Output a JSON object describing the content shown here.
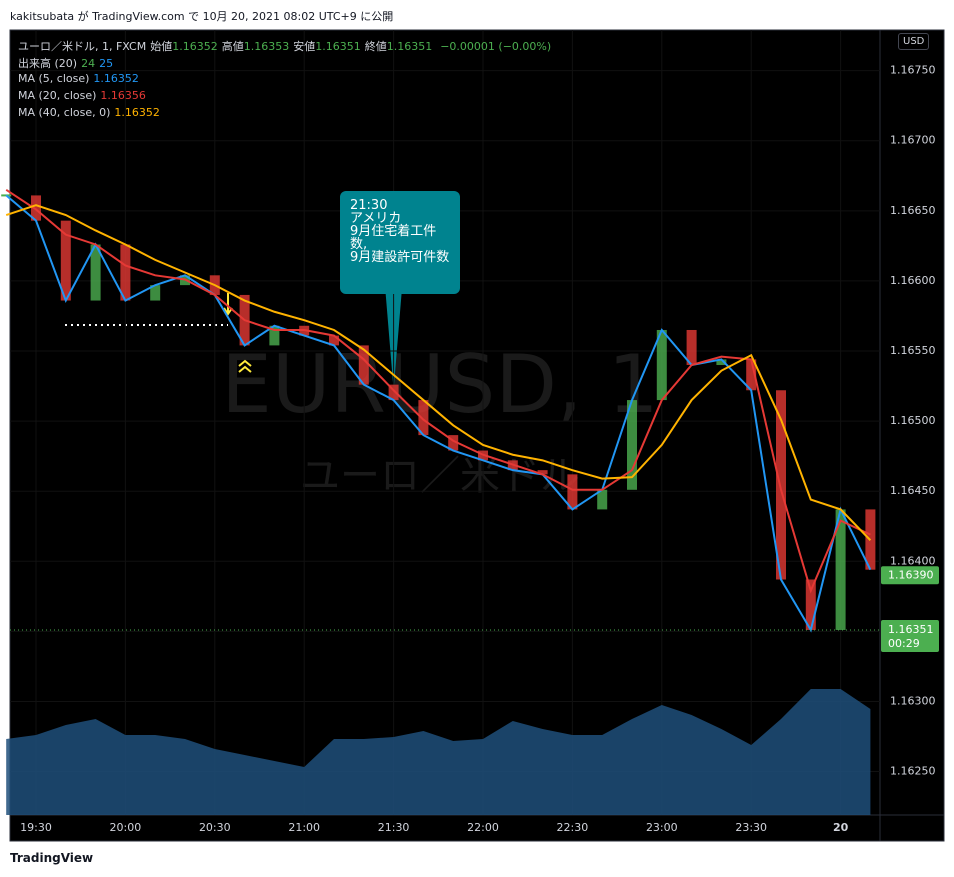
{
  "header": "kakitsubata が TradingView.com で 10月 20, 2021 08:02 UTC+9 に公開",
  "footer": "TradingView",
  "currency_button": "USD",
  "chart_data": {
    "type": "candlestick",
    "symbol": "ユーロ／米ドル, 1, FXCM",
    "watermark": "EURUSD, 1",
    "watermark_sub": "ユーロ／米ドル",
    "ohlc": [
      {
        "label": "始値",
        "value": "1.16352"
      },
      {
        "label": "高値",
        "value": "1.16353"
      },
      {
        "label": "安値",
        "value": "1.16351"
      },
      {
        "label": "終値",
        "value": "1.16351"
      }
    ],
    "change": "−0.00001 (−0.00%)",
    "volume_legend": {
      "name": "出来高 (20)",
      "values": [
        "24",
        "25"
      ]
    },
    "x": [
      "19:20",
      "19:30",
      "19:40",
      "19:50",
      "20:00",
      "20:10",
      "20:20",
      "20:30",
      "20:40",
      "20:50",
      "21:00",
      "21:10",
      "21:20",
      "21:30",
      "21:40",
      "21:50",
      "22:00",
      "22:10",
      "22:20",
      "22:30",
      "22:40",
      "22:50",
      "23:00",
      "23:10",
      "23:20",
      "23:30",
      "23:40",
      "23:50",
      "00:00",
      "00:10"
    ],
    "values": [
      1.16661,
      1.16643,
      1.16586,
      1.16626,
      1.16586,
      1.16597,
      1.16604,
      1.1659,
      1.16554,
      1.16568,
      1.16561,
      1.16554,
      1.16526,
      1.16515,
      1.1649,
      1.16479,
      1.16472,
      1.16465,
      1.16462,
      1.16437,
      1.16451,
      1.16515,
      1.16565,
      1.1654,
      1.16544,
      1.16522,
      1.16387,
      1.16351,
      1.16437,
      1.16394
    ],
    "up_color": "#4caf50",
    "down_color": "#e53935",
    "series": [
      {
        "name": "MA (5, close)",
        "last": "1.16352",
        "color": "#2196f3",
        "values": [
          1.16661,
          1.16643,
          1.16586,
          1.16626,
          1.16586,
          1.16597,
          1.16604,
          1.1659,
          1.16554,
          1.16568,
          1.16561,
          1.16554,
          1.16526,
          1.16515,
          1.1649,
          1.16479,
          1.16472,
          1.16465,
          1.16462,
          1.16437,
          1.16451,
          1.16515,
          1.16565,
          1.1654,
          1.16544,
          1.16522,
          1.16387,
          1.16351,
          1.16437,
          1.16394
        ]
      },
      {
        "name": "MA (20, close)",
        "last": "1.16356",
        "color": "#e53935",
        "values": [
          1.16665,
          1.16651,
          1.16633,
          1.16626,
          1.16611,
          1.16604,
          1.16601,
          1.1659,
          1.16572,
          1.16565,
          1.16565,
          1.16561,
          1.16544,
          1.16522,
          1.16501,
          1.16486,
          1.16476,
          1.16469,
          1.16462,
          1.16451,
          1.16451,
          1.16465,
          1.16515,
          1.1654,
          1.16546,
          1.16544,
          1.16451,
          1.16379,
          1.16429,
          1.16419
        ]
      },
      {
        "name": "MA (40, close, 0)",
        "last": "1.16352",
        "color": "#ffb300",
        "values": [
          1.16647,
          1.16654,
          1.16647,
          1.16636,
          1.16626,
          1.16615,
          1.16606,
          1.16597,
          1.16586,
          1.16578,
          1.16572,
          1.16565,
          1.16551,
          1.16533,
          1.16515,
          1.16497,
          1.16483,
          1.16476,
          1.16472,
          1.16465,
          1.16459,
          1.1646,
          1.16483,
          1.16515,
          1.16536,
          1.16547,
          1.16501,
          1.16444,
          1.16437,
          1.16415
        ]
      }
    ],
    "volume": {
      "color": "#1e4f7a",
      "ylim": [
        0,
        100
      ],
      "values": [
        38,
        40,
        45,
        48,
        40,
        40,
        38,
        33,
        30,
        27,
        24,
        38,
        38,
        39,
        42,
        37,
        38,
        47,
        43,
        40,
        40,
        48,
        55,
        50,
        43,
        35,
        48,
        63,
        63,
        53
      ]
    },
    "ylim": [
      1.16219,
      1.16779
    ],
    "yticks": [
      {
        "value": 1.1675,
        "label": "1.16750"
      },
      {
        "value": 1.167,
        "label": "1.16700"
      },
      {
        "value": 1.1665,
        "label": "1.16650"
      },
      {
        "value": 1.166,
        "label": "1.16600"
      },
      {
        "value": 1.1655,
        "label": "1.16550"
      },
      {
        "value": 1.165,
        "label": "1.16500"
      },
      {
        "value": 1.1645,
        "label": "1.16450"
      },
      {
        "value": 1.164,
        "label": "1.16400"
      },
      {
        "value": 1.1635,
        "label": "1.16350"
      },
      {
        "value": 1.163,
        "label": "1.16300"
      },
      {
        "value": 1.1625,
        "label": "1.16250"
      }
    ],
    "xticks": [
      "19:30",
      "20:00",
      "20:30",
      "21:00",
      "21:30",
      "22:00",
      "22:30",
      "23:00",
      "23:30",
      {
        "value": "00:00",
        "label": "20"
      }
    ],
    "last_price": {
      "value": 1.1639,
      "label": "1.16390",
      "color": "#4caf50"
    },
    "current_price": {
      "value": 1.16351,
      "label": "1.16351",
      "countdown": "00:29",
      "color": "#4caf50"
    },
    "callout": {
      "time": "21:30",
      "lines": [
        "アメリカ",
        "9月住宅着工件数,",
        "9月建設許可件数"
      ],
      "anchor": "21:30"
    }
  }
}
